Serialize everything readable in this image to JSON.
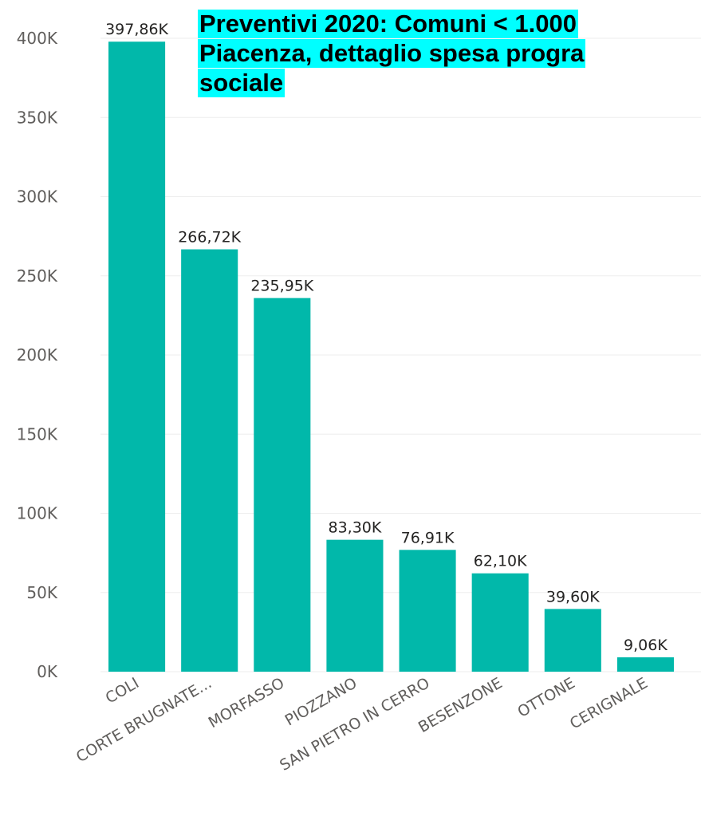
{
  "chart_data": {
    "type": "bar",
    "title_lines": [
      "Preventivi 2020: Comuni < 1.000",
      "Piacenza, dettaglio spesa progra",
      "sociale"
    ],
    "categories": [
      "COLI",
      "CORTE BRUGNATE...",
      "MORFASSO",
      "PIOZZANO",
      "SAN PIETRO IN CERRO",
      "BESENZONE",
      "OTTONE",
      "CERIGNALE"
    ],
    "values": [
      397860,
      266720,
      235950,
      83300,
      76910,
      62100,
      39600,
      9060
    ],
    "data_labels": [
      "397,86K",
      "266,72K",
      "235,95K",
      "83,30K",
      "76,91K",
      "62,10K",
      "39,60K",
      "9,06K"
    ],
    "ylim": [
      0,
      400000
    ],
    "yticks": [
      {
        "value": 0,
        "label": "0K"
      },
      {
        "value": 50000,
        "label": "50K"
      },
      {
        "value": 100000,
        "label": "100K"
      },
      {
        "value": 150000,
        "label": "150K"
      },
      {
        "value": 200000,
        "label": "200K"
      },
      {
        "value": 250000,
        "label": "250K"
      },
      {
        "value": 300000,
        "label": "300K"
      },
      {
        "value": 350000,
        "label": "350K"
      },
      {
        "value": 400000,
        "label": "400K"
      }
    ],
    "grid": true,
    "colors": {
      "bar": "#01b8aa",
      "grid": "#eeeeee",
      "text": "#252423",
      "axis_text": "#605e5c",
      "title_highlight": "#00ffff"
    }
  }
}
